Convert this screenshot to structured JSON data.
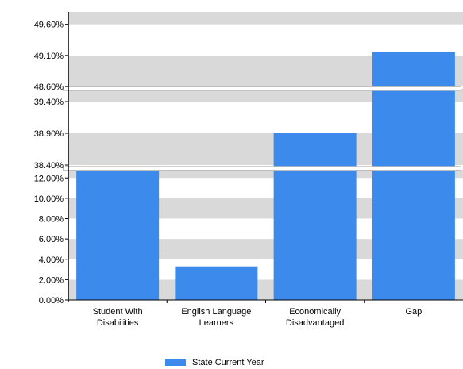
{
  "chart_data": {
    "type": "bar",
    "categories": [
      "Student With Disabilities",
      "English Language Learners",
      "Economically Disadvantaged",
      "Gap"
    ],
    "category_lines": [
      [
        "Student With",
        "Disabilities"
      ],
      [
        "English Language",
        "Learners"
      ],
      [
        "Economically",
        "Disadvantaged"
      ],
      [
        "Gap"
      ]
    ],
    "series": [
      {
        "name": "State Current Year",
        "values": [
          13.0,
          3.3,
          38.9,
          49.15
        ]
      }
    ],
    "axis_break": true,
    "y_segments": [
      {
        "range": [
          0,
          12.8
        ],
        "ticks": [
          "0.00%",
          "2.00%",
          "4.00%",
          "6.00%",
          "8.00%",
          "10.00%",
          "12.00%"
        ],
        "tick_values": [
          0,
          2,
          4,
          6,
          8,
          10,
          12
        ]
      },
      {
        "range": [
          38.4,
          39.6
        ],
        "ticks": [
          "38.40%",
          "38.90%",
          "39.40%"
        ],
        "tick_values": [
          38.4,
          38.9,
          39.4
        ]
      },
      {
        "range": [
          48.6,
          49.8
        ],
        "ticks": [
          "48.60%",
          "49.10%",
          "49.60%"
        ],
        "tick_values": [
          48.6,
          49.1,
          49.6
        ]
      }
    ],
    "grid": "alternating-bands",
    "legend": "bottom",
    "colors": {
      "bar": "#3c8aeb",
      "band": "#d9d9d9",
      "axis": "#000000"
    }
  },
  "legend": {
    "label": "State Current Year"
  }
}
